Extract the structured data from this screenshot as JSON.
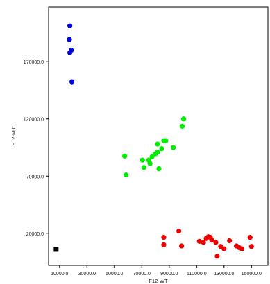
{
  "chart_data": {
    "type": "scatter",
    "xlabel": "F12-WT",
    "ylabel": "F12-Mut",
    "xlim": [
      2000,
      162000
    ],
    "ylim": [
      -8000,
      218000
    ],
    "x_ticks": [
      10000,
      30000,
      50000,
      70000,
      90000,
      110000,
      130000,
      150000
    ],
    "x_tick_labels": [
      "10000.0",
      "30000.0",
      "50000.0",
      "70000.0",
      "90000.0",
      "110000.0",
      "130000.0",
      "150000.0"
    ],
    "y_ticks": [
      20000,
      70000,
      120000,
      170000
    ],
    "y_tick_labels": [
      "20000.0",
      "70000.0",
      "120000.0",
      "170000.0"
    ],
    "grid": false,
    "series": [
      {
        "color": "#0000dd",
        "marker": "circle",
        "points": [
          [
            17500,
            201500
          ],
          [
            17200,
            189500
          ],
          [
            18500,
            180000
          ],
          [
            17500,
            178000
          ],
          [
            19000,
            152500
          ]
        ]
      },
      {
        "color": "#00ee00",
        "marker": "circle",
        "points": [
          [
            57500,
            87500
          ],
          [
            58500,
            71000
          ],
          [
            70500,
            84000
          ],
          [
            71500,
            77500
          ],
          [
            75000,
            84000
          ],
          [
            76000,
            81000
          ],
          [
            77500,
            87000
          ],
          [
            80000,
            89500
          ],
          [
            81500,
            91000
          ],
          [
            81500,
            98000
          ],
          [
            82500,
            76500
          ],
          [
            84500,
            94000
          ],
          [
            86000,
            101000
          ],
          [
            87500,
            101000
          ],
          [
            93000,
            95000
          ],
          [
            99500,
            113500
          ],
          [
            100500,
            120000
          ]
        ]
      },
      {
        "color": "#ee0000",
        "marker": "circle",
        "points": [
          [
            86000,
            16500
          ],
          [
            86000,
            10000
          ],
          [
            97000,
            22000
          ],
          [
            99000,
            9000
          ],
          [
            112000,
            13000
          ],
          [
            115000,
            12000
          ],
          [
            117000,
            15500
          ],
          [
            118500,
            17000
          ],
          [
            120000,
            16500
          ],
          [
            121000,
            14000
          ],
          [
            124000,
            12000
          ],
          [
            125000,
            0
          ],
          [
            127500,
            8500
          ],
          [
            130000,
            6500
          ],
          [
            134000,
            13500
          ],
          [
            139000,
            9000
          ],
          [
            141000,
            7500
          ],
          [
            143000,
            6500
          ],
          [
            149000,
            16500
          ],
          [
            150000,
            8500
          ]
        ]
      },
      {
        "color": "#000000",
        "marker": "square",
        "points": [
          [
            7500,
            6000
          ]
        ]
      }
    ]
  }
}
